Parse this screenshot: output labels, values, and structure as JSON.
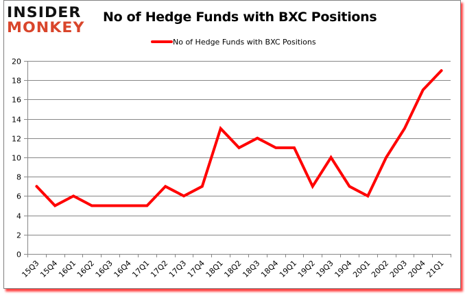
{
  "logo": {
    "line1": "INSIDER",
    "line2": "MONKEY"
  },
  "colors": {
    "series": "#ff0000",
    "grid": "#868686",
    "logo_accent": "#d9452b",
    "frame_shadow": "#ff0000"
  },
  "chart_data": {
    "type": "line",
    "title": "No of Hedge Funds with BXC Positions",
    "xlabel": "",
    "ylabel": "",
    "ylim": [
      0,
      20
    ],
    "yticks": [
      0,
      2,
      4,
      6,
      8,
      10,
      12,
      14,
      16,
      18,
      20
    ],
    "grid": true,
    "legend_position": "top",
    "categories": [
      "15Q3",
      "15Q4",
      "16Q1",
      "16Q2",
      "16Q3",
      "16Q4",
      "17Q1",
      "17Q2",
      "17Q3",
      "17Q4",
      "18Q1",
      "18Q2",
      "18Q3",
      "18Q4",
      "19Q1",
      "19Q2",
      "19Q3",
      "19Q4",
      "20Q1",
      "20Q2",
      "20Q3",
      "20Q4",
      "21Q1"
    ],
    "series": [
      {
        "name": "No of Hedge Funds with BXC Positions",
        "color": "#ff0000",
        "values": [
          7,
          5,
          6,
          5,
          5,
          5,
          5,
          7,
          6,
          7,
          13,
          11,
          12,
          11,
          11,
          7,
          10,
          7,
          6,
          10,
          13,
          17,
          19
        ]
      }
    ]
  }
}
